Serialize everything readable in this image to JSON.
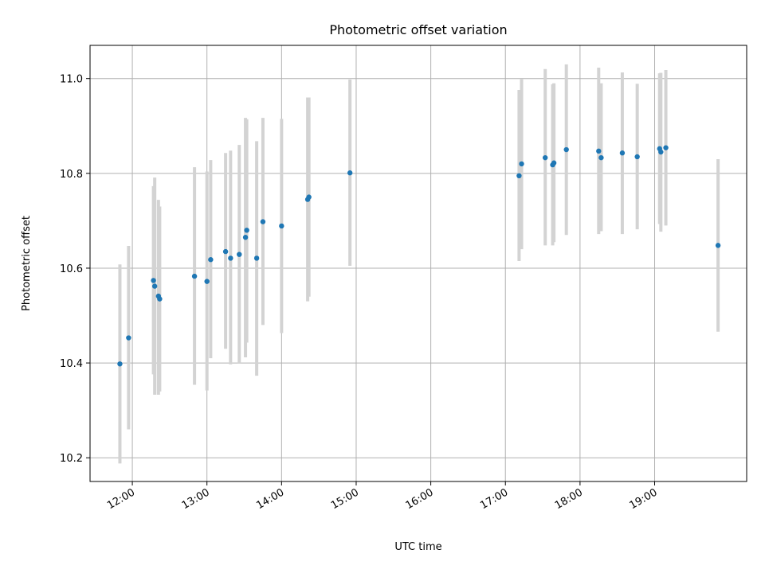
{
  "chart_data": {
    "type": "scatter",
    "title": "Photometric offset variation",
    "xlabel": "UTC time",
    "ylabel": "Photometric offset",
    "xlim": [
      "11:26",
      "20:14"
    ],
    "ylim": [
      10.15,
      11.07
    ],
    "x_ticks": [
      "12:00",
      "13:00",
      "14:00",
      "15:00",
      "16:00",
      "17:00",
      "18:00",
      "19:00"
    ],
    "y_ticks": [
      10.2,
      10.4,
      10.6,
      10.8,
      11.0
    ],
    "grid": true,
    "marker_color": "#1f77b4",
    "errorbar_color": "#d3d3d3",
    "points": [
      {
        "time": "11:50",
        "value": 10.398,
        "low": 10.188,
        "high": 10.608
      },
      {
        "time": "11:57",
        "value": 10.453,
        "low": 10.26,
        "high": 10.647
      },
      {
        "time": "12:17",
        "value": 10.574,
        "low": 10.376,
        "high": 10.773
      },
      {
        "time": "12:18",
        "value": 10.562,
        "low": 10.333,
        "high": 10.791
      },
      {
        "time": "12:21",
        "value": 10.541,
        "low": 10.333,
        "high": 10.744
      },
      {
        "time": "12:22",
        "value": 10.535,
        "low": 10.34,
        "high": 10.73
      },
      {
        "time": "12:50",
        "value": 10.583,
        "low": 10.354,
        "high": 10.813
      },
      {
        "time": "13:00",
        "value": 10.572,
        "low": 10.342,
        "high": 10.804
      },
      {
        "time": "13:03",
        "value": 10.618,
        "low": 10.41,
        "high": 10.828
      },
      {
        "time": "13:15",
        "value": 10.635,
        "low": 10.43,
        "high": 10.843
      },
      {
        "time": "13:19",
        "value": 10.621,
        "low": 10.397,
        "high": 10.848
      },
      {
        "time": "13:26",
        "value": 10.629,
        "low": 10.4,
        "high": 10.86
      },
      {
        "time": "13:31",
        "value": 10.665,
        "low": 10.412,
        "high": 10.917
      },
      {
        "time": "13:32",
        "value": 10.68,
        "low": 10.443,
        "high": 10.914
      },
      {
        "time": "13:40",
        "value": 10.621,
        "low": 10.373,
        "high": 10.868
      },
      {
        "time": "13:45",
        "value": 10.698,
        "low": 10.48,
        "high": 10.917
      },
      {
        "time": "14:00",
        "value": 10.689,
        "low": 10.463,
        "high": 10.915
      },
      {
        "time": "14:21",
        "value": 10.745,
        "low": 10.53,
        "high": 10.96
      },
      {
        "time": "14:22",
        "value": 10.75,
        "low": 10.54,
        "high": 10.96
      },
      {
        "time": "14:55",
        "value": 10.801,
        "low": 10.605,
        "high": 10.998
      },
      {
        "time": "17:11",
        "value": 10.795,
        "low": 10.615,
        "high": 10.976
      },
      {
        "time": "17:13",
        "value": 10.82,
        "low": 10.64,
        "high": 10.999
      },
      {
        "time": "17:32",
        "value": 10.833,
        "low": 10.648,
        "high": 11.02
      },
      {
        "time": "17:38",
        "value": 10.818,
        "low": 10.648,
        "high": 10.988
      },
      {
        "time": "17:39",
        "value": 10.822,
        "low": 10.655,
        "high": 10.99
      },
      {
        "time": "17:49",
        "value": 10.85,
        "low": 10.67,
        "high": 11.03
      },
      {
        "time": "18:15",
        "value": 10.847,
        "low": 10.672,
        "high": 11.023
      },
      {
        "time": "18:17",
        "value": 10.833,
        "low": 10.678,
        "high": 10.99
      },
      {
        "time": "18:34",
        "value": 10.843,
        "low": 10.672,
        "high": 11.013
      },
      {
        "time": "18:46",
        "value": 10.835,
        "low": 10.682,
        "high": 10.989
      },
      {
        "time": "19:04",
        "value": 10.852,
        "low": 10.693,
        "high": 11.011
      },
      {
        "time": "19:05",
        "value": 10.845,
        "low": 10.677,
        "high": 11.012
      },
      {
        "time": "19:09",
        "value": 10.854,
        "low": 10.69,
        "high": 11.018
      },
      {
        "time": "19:51",
        "value": 10.648,
        "low": 10.466,
        "high": 10.83
      }
    ]
  }
}
